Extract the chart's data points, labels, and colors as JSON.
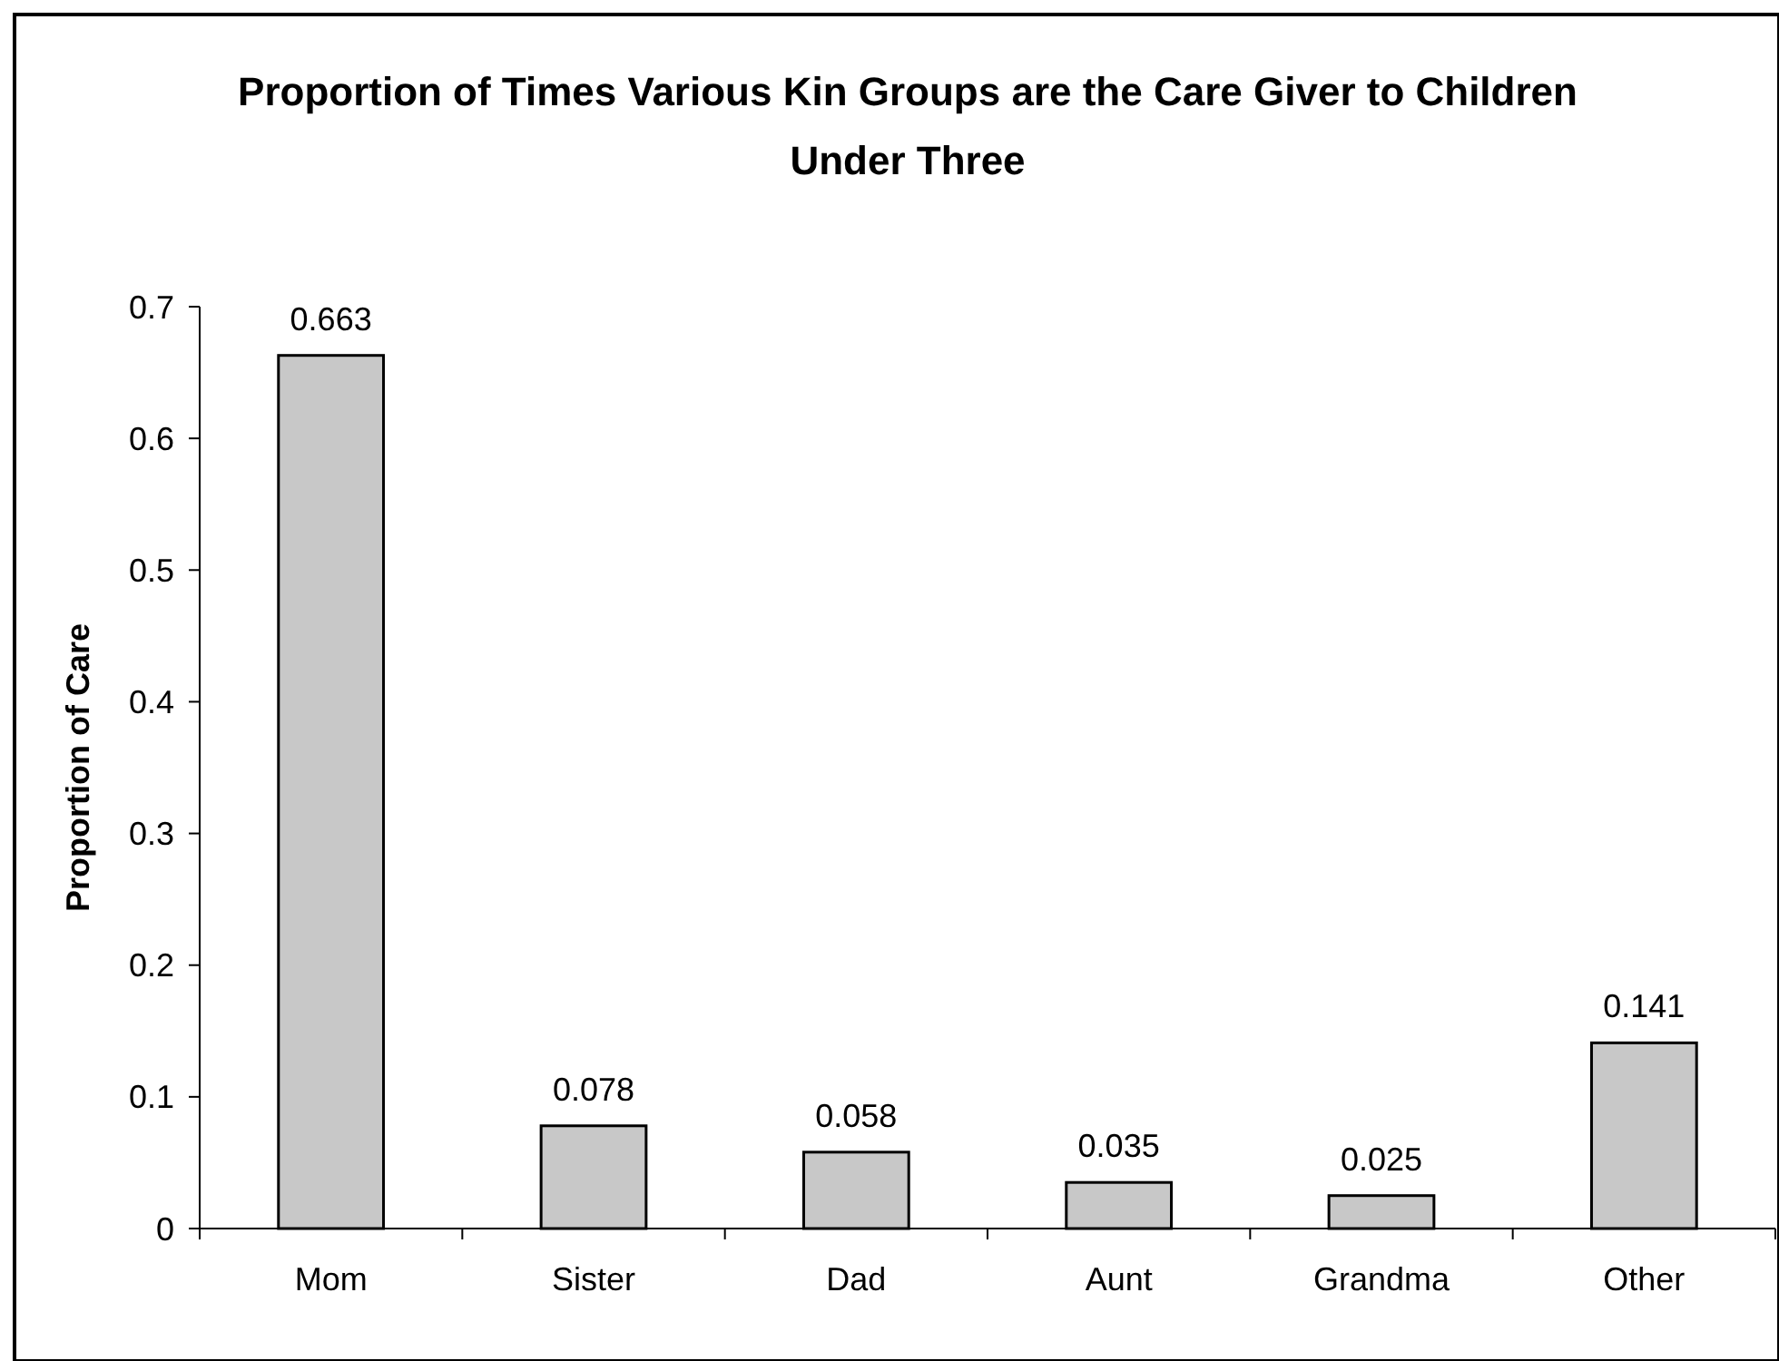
{
  "chart_data": {
    "type": "bar",
    "title": "Proportion of Times Various Kin Groups are the Care Giver to Children Under Three",
    "ylabel": "Proportion of Care",
    "categories": [
      "Mom",
      "Sister",
      "Dad",
      "Aunt",
      "Grandma",
      "Other"
    ],
    "values": [
      0.663,
      0.078,
      0.058,
      0.035,
      0.025,
      0.141
    ],
    "color": "#c8c8c8",
    "ylim": [
      0,
      0.7
    ],
    "yticks": [
      0,
      0.1,
      0.2,
      0.3,
      0.4,
      0.5,
      0.6,
      0.7
    ],
    "data_labels": true
  }
}
